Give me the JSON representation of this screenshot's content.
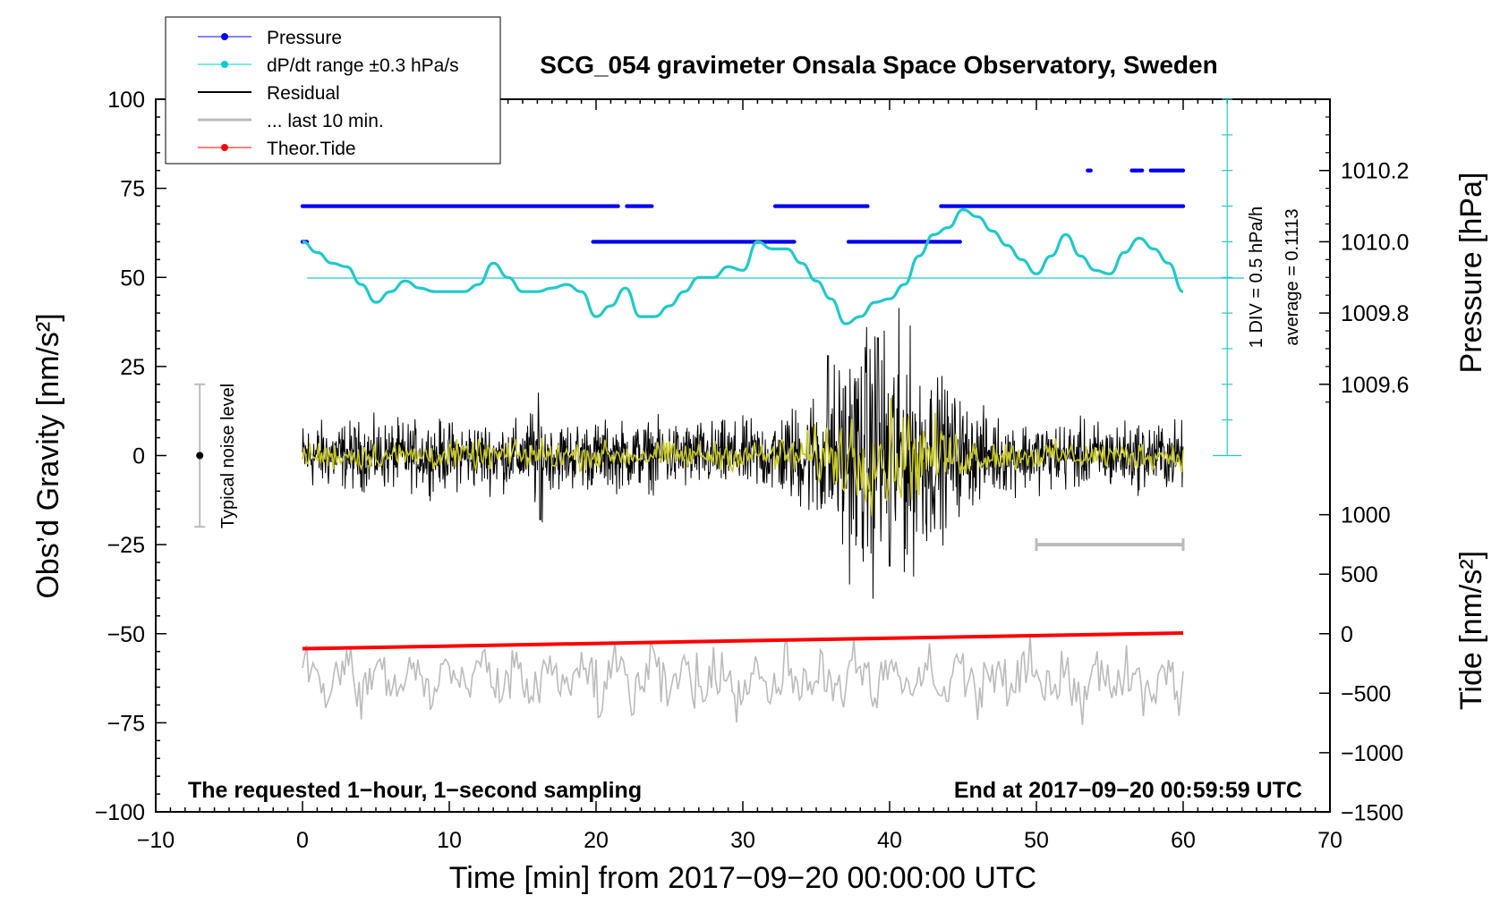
{
  "chart_data": {
    "type": "line",
    "title": "SCG_054 gravimeter Onsala Space Observatory, Sweden",
    "xlabel": "Time [min] from 2017−09−20 00:00:00 UTC",
    "ylabel_left": "Obs’d Gravity [nm/s²]",
    "ylabel_right_top": "Pressure [hPa]",
    "ylabel_right_bottom": "Tide [nm/s²]",
    "xlim": [
      -10,
      70
    ],
    "ylim": [
      -100,
      100
    ],
    "xticks": [
      "−10",
      "0",
      "10",
      "20",
      "30",
      "40",
      "50",
      "60",
      "70"
    ],
    "yticks_left": [
      "100",
      "75",
      "50",
      "25",
      "0",
      "−25",
      "−50",
      "−75",
      "−100"
    ],
    "pressure_ticks": [
      "1010.2",
      "1010.0",
      "1009.8",
      "1009.6"
    ],
    "tide_ticks": [
      "1000",
      "500",
      "0",
      "−500",
      "−1000",
      "−1500"
    ],
    "legend": [
      {
        "label": "Pressure",
        "color": "#0000ff"
      },
      {
        "label": "dP/dt range ±0.3 hPa/s",
        "color": "#00cccc"
      },
      {
        "label": "Residual",
        "color": "#000000"
      },
      {
        "label": "... last 10 min.",
        "color": "#bbbbbb"
      },
      {
        "label": "Theor.Tide",
        "color": "#ff0000"
      }
    ],
    "annotations": {
      "div_text": "1 DIV = 0.5 hPa/h",
      "average_text": "average = 0.1113",
      "noise_text": "Typical noise level",
      "bottom_left": "The requested 1−hour, 1−second sampling",
      "bottom_right": "End at 2017−09−20 00:59:59 UTC"
    },
    "series": [
      {
        "name": "dP/dt",
        "color": "#22c8c8",
        "x": [
          0,
          1,
          2,
          3,
          4,
          5,
          6,
          7,
          8,
          9,
          10,
          11,
          12,
          13,
          14,
          15,
          16,
          17,
          18,
          19,
          20,
          21,
          22,
          23,
          24,
          25,
          26,
          27,
          28,
          29,
          30,
          31,
          32,
          33,
          34,
          35,
          36,
          37,
          38,
          39,
          40,
          41,
          42,
          43,
          44,
          45,
          46,
          47,
          48,
          49,
          50,
          51,
          52,
          53,
          54,
          55,
          56,
          57,
          58,
          59,
          60
        ],
        "y": [
          60,
          57,
          54,
          53,
          48,
          43,
          46,
          49,
          47,
          46,
          46,
          46,
          48,
          54,
          50,
          46,
          46,
          47,
          48,
          46,
          39,
          42,
          47,
          39,
          39,
          42,
          46,
          50,
          50,
          53,
          52,
          60,
          58,
          58,
          54,
          49,
          44,
          37,
          39,
          43,
          44,
          48,
          56,
          62,
          64,
          69,
          67,
          63,
          59,
          55,
          51,
          56,
          62,
          56,
          52,
          51,
          57,
          61,
          58,
          54,
          46
        ]
      },
      {
        "name": "Theor.Tide",
        "color": "#ff0000",
        "x": [
          0,
          60
        ],
        "y": [
          -54.2,
          -49.8
        ]
      }
    ],
    "pressure_dot_rows": [
      {
        "level": 70,
        "segments": [
          [
            0,
            21.5
          ],
          [
            22.1,
            23.8
          ],
          [
            32.2,
            38.5
          ],
          [
            43.5,
            60
          ]
        ]
      },
      {
        "level": 60,
        "segments": [
          [
            0,
            0.3
          ],
          [
            19.8,
            33.5
          ],
          [
            37.2,
            44.8
          ]
        ]
      },
      {
        "level": 80,
        "segments": [
          [
            53.5,
            53.7
          ],
          [
            56.5,
            57.2
          ],
          [
            57.8,
            60
          ]
        ]
      }
    ],
    "noise_bar": {
      "x": -7,
      "ymin": -20,
      "ymax": 20
    },
    "grey_range_bar": {
      "x0": 50,
      "x1": 60,
      "y": -25
    }
  }
}
